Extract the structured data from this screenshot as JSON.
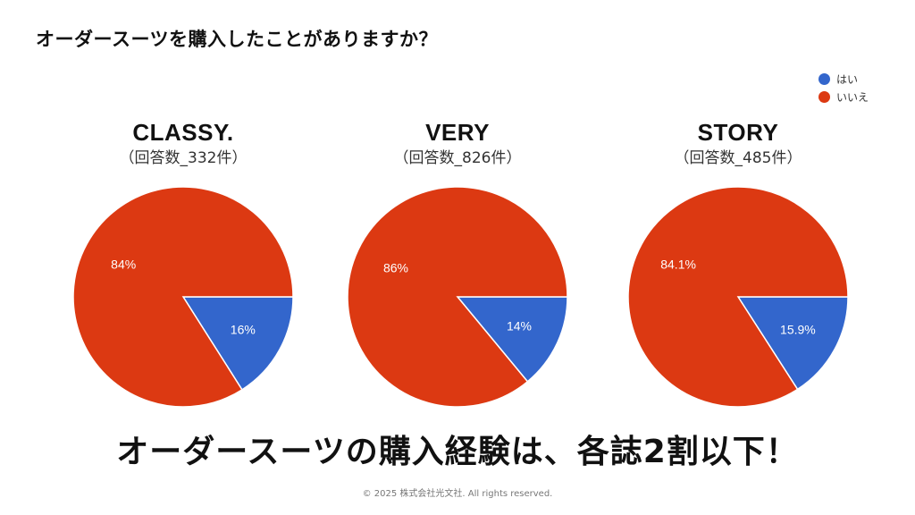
{
  "question": "オーダースーツを購入したことがありますか？",
  "legend": [
    {
      "label": "はい",
      "color": "#3366cc"
    },
    {
      "label": "いいえ",
      "color": "#dc3912"
    }
  ],
  "chart_data": [
    {
      "type": "pie",
      "title": "CLASSY.",
      "subtitle": "（回答数_332件）",
      "categories": [
        "はい",
        "いいえ"
      ],
      "values": [
        16,
        84
      ],
      "labels": [
        "16%",
        "84%"
      ]
    },
    {
      "type": "pie",
      "title": "VERY",
      "subtitle": "（回答数_826件）",
      "categories": [
        "はい",
        "いいえ"
      ],
      "values": [
        14,
        86
      ],
      "labels": [
        "14%",
        "86%"
      ]
    },
    {
      "type": "pie",
      "title": "STORY",
      "subtitle": "（回答数_485件）",
      "categories": [
        "はい",
        "いいえ"
      ],
      "values": [
        15.9,
        84.1
      ],
      "labels": [
        "15.9%",
        "84.1%"
      ]
    }
  ],
  "conclusion": "オーダースーツの購入経験は、各誌2割以下！",
  "copyright": "© 2025 株式会社光文社. All rights reserved."
}
